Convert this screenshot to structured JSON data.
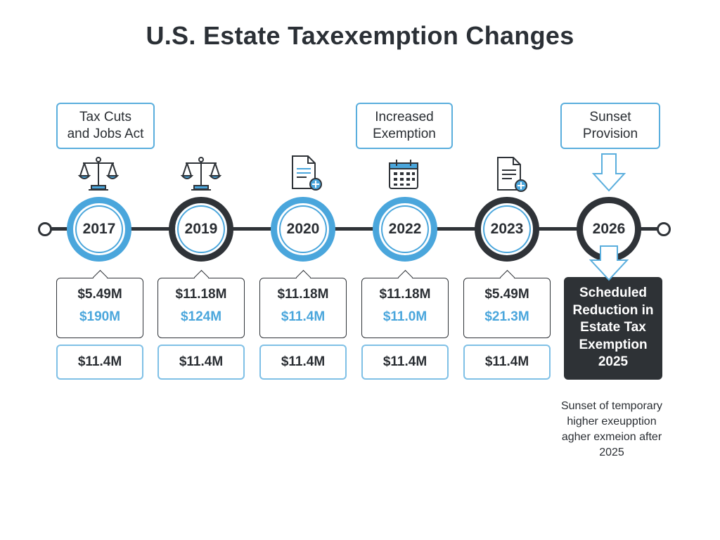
{
  "title": "U.S. Estate Taxexemption Changes",
  "callouts": [
    {
      "text": "Tax Cuts\nand Jobs Act"
    },
    {
      "text": "Increased\nExemption"
    },
    {
      "text": "Sunset\nProvision"
    }
  ],
  "milestones": [
    {
      "year": "2017",
      "value_top": "$5.49M",
      "value_accent": "$190M",
      "value_bottom": "$11.4M",
      "icon": "scales-icon"
    },
    {
      "year": "2019",
      "value_top": "$11.18M",
      "value_accent": "$124M",
      "value_bottom": "$11.4M",
      "icon": "scales-icon"
    },
    {
      "year": "2020",
      "value_top": "$11.18M",
      "value_accent": "$11.4M",
      "value_bottom": "$11.4M",
      "icon": "document-add-icon"
    },
    {
      "year": "2022",
      "value_top": "$11.18M",
      "value_accent": "$11.0M",
      "value_bottom": "$11.4M",
      "icon": "calendar-icon"
    },
    {
      "year": "2023",
      "value_top": "$5.49M",
      "value_accent": "$21.3M",
      "value_bottom": "$11.4M",
      "icon": "document-add-icon"
    }
  ],
  "final_milestone": {
    "year": "2026",
    "box_text": "Scheduled\nReduction in\nEstate Tax\nExemption\n2025",
    "note": "Sunset of temporary\nhigher exeupption\nagher exmeion after\n2025",
    "icon": "arrow-down-icon"
  },
  "colors": {
    "accent": "#4aa6dc",
    "dark": "#2f3338",
    "box_dark": "#2e3236"
  }
}
